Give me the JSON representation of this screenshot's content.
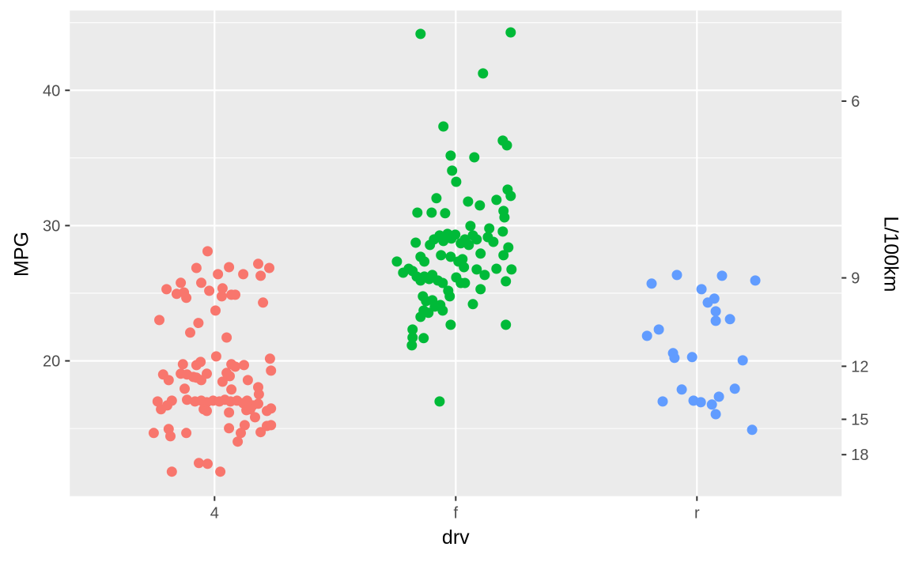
{
  "figure": {
    "background": "#ffffff",
    "panel_background": "#EBEBEB",
    "gridline_color": "#FFFFFF",
    "tick_mark_color": "#333333",
    "tick_label_color": "#4D4D4D",
    "axis_title_color": "#000000"
  },
  "chart_data": {
    "type": "scatter",
    "title": "",
    "xlabel": "drv",
    "ylabel": "MPG",
    "ylabel_right": "L/100km",
    "x_categories": [
      "4",
      "f",
      "r"
    ],
    "y_left_ticks": [
      20,
      30,
      40
    ],
    "y_left_minor": [
      15,
      25,
      35,
      45
    ],
    "y_right_ticks": [
      6,
      9,
      12,
      15,
      18
    ],
    "y_right_transform_constant": 235.215,
    "ylim": [
      10.0,
      45.9
    ],
    "grid": true,
    "legend": "none",
    "point_radius": 6.5,
    "series": [
      {
        "name": "4",
        "color": "#F8766D",
        "points": [
          {
            "x": -0.029,
            "y": 28.1
          },
          {
            "x": -0.075,
            "y": 26.87
          },
          {
            "x": 0.06,
            "y": 26.93
          },
          {
            "x": 0.181,
            "y": 27.17
          },
          {
            "x": 0.227,
            "y": 26.87
          },
          {
            "x": 0.014,
            "y": 26.41
          },
          {
            "x": 0.119,
            "y": 26.41
          },
          {
            "x": 0.191,
            "y": 26.29
          },
          {
            "x": -0.055,
            "y": 25.77
          },
          {
            "x": -0.14,
            "y": 25.77
          },
          {
            "x": -0.199,
            "y": 25.3
          },
          {
            "x": -0.157,
            "y": 24.95
          },
          {
            "x": -0.127,
            "y": 25.06
          },
          {
            "x": -0.117,
            "y": 24.66
          },
          {
            "x": -0.022,
            "y": 25.18
          },
          {
            "x": 0.033,
            "y": 25.36
          },
          {
            "x": 0.03,
            "y": 24.77
          },
          {
            "x": 0.07,
            "y": 24.89
          },
          {
            "x": 0.086,
            "y": 24.89
          },
          {
            "x": 0.201,
            "y": 24.31
          },
          {
            "x": 0.004,
            "y": 23.72
          },
          {
            "x": -0.229,
            "y": 23.02
          },
          {
            "x": -0.067,
            "y": 22.8
          },
          {
            "x": -0.101,
            "y": 22.09
          },
          {
            "x": 0.05,
            "y": 21.73
          },
          {
            "x": 0.007,
            "y": 20.33
          },
          {
            "x": -0.131,
            "y": 19.75
          },
          {
            "x": -0.075,
            "y": 19.69
          },
          {
            "x": -0.058,
            "y": 19.92
          },
          {
            "x": 0.07,
            "y": 19.75
          },
          {
            "x": 0.086,
            "y": 19.57
          },
          {
            "x": 0.122,
            "y": 19.69
          },
          {
            "x": 0.23,
            "y": 20.16
          },
          {
            "x": 0.234,
            "y": 19.28
          },
          {
            "x": -0.213,
            "y": 18.99
          },
          {
            "x": -0.19,
            "y": 18.58
          },
          {
            "x": -0.14,
            "y": 19.05
          },
          {
            "x": -0.114,
            "y": 18.99
          },
          {
            "x": -0.088,
            "y": 18.81
          },
          {
            "x": -0.075,
            "y": 18.76
          },
          {
            "x": -0.055,
            "y": 18.58
          },
          {
            "x": -0.032,
            "y": 19.05
          },
          {
            "x": 0.05,
            "y": 19.11
          },
          {
            "x": 0.063,
            "y": 18.87
          },
          {
            "x": 0.033,
            "y": 18.46
          },
          {
            "x": 0.138,
            "y": 18.58
          },
          {
            "x": 0.181,
            "y": 18.05
          },
          {
            "x": -0.124,
            "y": 17.94
          },
          {
            "x": 0.07,
            "y": 17.88
          },
          {
            "x": 0.184,
            "y": 17.53
          },
          {
            "x": -0.236,
            "y": 17.0
          },
          {
            "x": -0.196,
            "y": 16.71
          },
          {
            "x": -0.222,
            "y": 16.42
          },
          {
            "x": -0.177,
            "y": 17.06
          },
          {
            "x": -0.114,
            "y": 17.12
          },
          {
            "x": -0.081,
            "y": 17.0
          },
          {
            "x": -0.055,
            "y": 17.06
          },
          {
            "x": -0.032,
            "y": 16.94
          },
          {
            "x": -0.006,
            "y": 17.06
          },
          {
            "x": 0.02,
            "y": 17.0
          },
          {
            "x": 0.043,
            "y": 17.12
          },
          {
            "x": 0.066,
            "y": 17.0
          },
          {
            "x": 0.093,
            "y": 17.06
          },
          {
            "x": 0.119,
            "y": 16.88
          },
          {
            "x": 0.135,
            "y": 17.06
          },
          {
            "x": 0.158,
            "y": 16.71
          },
          {
            "x": 0.181,
            "y": 16.83
          },
          {
            "x": -0.045,
            "y": 16.42
          },
          {
            "x": -0.032,
            "y": 16.3
          },
          {
            "x": 0.06,
            "y": 16.18
          },
          {
            "x": 0.132,
            "y": 16.36
          },
          {
            "x": 0.148,
            "y": 16.42
          },
          {
            "x": 0.168,
            "y": 15.83
          },
          {
            "x": 0.217,
            "y": 16.3
          },
          {
            "x": 0.234,
            "y": 16.48
          },
          {
            "x": 0.125,
            "y": 15.25
          },
          {
            "x": 0.06,
            "y": 15.02
          },
          {
            "x": 0.109,
            "y": 14.67
          },
          {
            "x": 0.191,
            "y": 14.73
          },
          {
            "x": 0.217,
            "y": 15.19
          },
          {
            "x": 0.234,
            "y": 15.25
          },
          {
            "x": -0.252,
            "y": 14.67
          },
          {
            "x": -0.19,
            "y": 14.96
          },
          {
            "x": -0.183,
            "y": 14.43
          },
          {
            "x": -0.117,
            "y": 14.67
          },
          {
            "x": 0.096,
            "y": 14.03
          },
          {
            "x": -0.065,
            "y": 12.45
          },
          {
            "x": -0.029,
            "y": 12.39
          },
          {
            "x": 0.024,
            "y": 11.81
          },
          {
            "x": -0.177,
            "y": 11.81
          }
        ]
      },
      {
        "name": "f",
        "color": "#00BA38",
        "points": [
          {
            "x": -0.146,
            "y": 44.17
          },
          {
            "x": 0.228,
            "y": 44.28
          },
          {
            "x": 0.113,
            "y": 41.25
          },
          {
            "x": -0.051,
            "y": 37.33
          },
          {
            "x": 0.195,
            "y": 36.28
          },
          {
            "x": 0.212,
            "y": 35.93
          },
          {
            "x": -0.021,
            "y": 35.17
          },
          {
            "x": 0.077,
            "y": 35.05
          },
          {
            "x": -0.015,
            "y": 34.06
          },
          {
            "x": 0.002,
            "y": 33.24
          },
          {
            "x": -0.08,
            "y": 32.02
          },
          {
            "x": 0.215,
            "y": 32.66
          },
          {
            "x": 0.228,
            "y": 32.19
          },
          {
            "x": 0.051,
            "y": 31.78
          },
          {
            "x": 0.1,
            "y": 31.49
          },
          {
            "x": 0.169,
            "y": 31.9
          },
          {
            "x": -0.159,
            "y": 30.96
          },
          {
            "x": -0.1,
            "y": 30.96
          },
          {
            "x": -0.044,
            "y": 30.91
          },
          {
            "x": 0.198,
            "y": 31.08
          },
          {
            "x": 0.202,
            "y": 30.61
          },
          {
            "x": 0.061,
            "y": 29.97
          },
          {
            "x": 0.139,
            "y": 29.79
          },
          {
            "x": 0.195,
            "y": 29.56
          },
          {
            "x": -0.166,
            "y": 28.74
          },
          {
            "x": -0.107,
            "y": 28.57
          },
          {
            "x": -0.09,
            "y": 28.98
          },
          {
            "x": -0.067,
            "y": 29.27
          },
          {
            "x": -0.051,
            "y": 28.86
          },
          {
            "x": -0.034,
            "y": 29.39
          },
          {
            "x": -0.018,
            "y": 29.04
          },
          {
            "x": -0.002,
            "y": 29.33
          },
          {
            "x": 0.021,
            "y": 28.69
          },
          {
            "x": 0.038,
            "y": 28.98
          },
          {
            "x": 0.054,
            "y": 28.57
          },
          {
            "x": 0.071,
            "y": 29.27
          },
          {
            "x": 0.087,
            "y": 28.98
          },
          {
            "x": 0.133,
            "y": 29.15
          },
          {
            "x": 0.156,
            "y": 28.8
          },
          {
            "x": 0.218,
            "y": 28.39
          },
          {
            "x": -0.146,
            "y": 27.69
          },
          {
            "x": -0.13,
            "y": 27.34
          },
          {
            "x": -0.061,
            "y": 27.81
          },
          {
            "x": -0.021,
            "y": 27.69
          },
          {
            "x": 0.011,
            "y": 27.34
          },
          {
            "x": 0.028,
            "y": 27.52
          },
          {
            "x": 0.103,
            "y": 27.93
          },
          {
            "x": 0.198,
            "y": 27.81
          },
          {
            "x": -0.244,
            "y": 27.34
          },
          {
            "x": -0.218,
            "y": 26.52
          },
          {
            "x": -0.195,
            "y": 26.81
          },
          {
            "x": -0.179,
            "y": 26.64
          },
          {
            "x": -0.162,
            "y": 26.23
          },
          {
            "x": -0.146,
            "y": 25.94
          },
          {
            "x": -0.13,
            "y": 26.23
          },
          {
            "x": -0.11,
            "y": 26.05
          },
          {
            "x": -0.097,
            "y": 26.35
          },
          {
            "x": -0.074,
            "y": 25.94
          },
          {
            "x": -0.054,
            "y": 25.76
          },
          {
            "x": 0.034,
            "y": 26.93
          },
          {
            "x": 0.087,
            "y": 26.76
          },
          {
            "x": 0.12,
            "y": 26.35
          },
          {
            "x": 0.169,
            "y": 26.81
          },
          {
            "x": 0.231,
            "y": 26.76
          },
          {
            "x": 0.002,
            "y": 26.17
          },
          {
            "x": 0.021,
            "y": 25.76
          },
          {
            "x": 0.038,
            "y": 25.76
          },
          {
            "x": 0.103,
            "y": 25.3
          },
          {
            "x": 0.208,
            "y": 25.88
          },
          {
            "x": -0.031,
            "y": 25.18
          },
          {
            "x": -0.025,
            "y": 24.77
          },
          {
            "x": -0.136,
            "y": 24.77
          },
          {
            "x": -0.123,
            "y": 24.42
          },
          {
            "x": -0.097,
            "y": 24.48
          },
          {
            "x": -0.087,
            "y": 24.01
          },
          {
            "x": -0.064,
            "y": 24.13
          },
          {
            "x": -0.054,
            "y": 23.72
          },
          {
            "x": 0.071,
            "y": 24.19
          },
          {
            "x": -0.133,
            "y": 23.72
          },
          {
            "x": -0.113,
            "y": 23.55
          },
          {
            "x": -0.146,
            "y": 23.25
          },
          {
            "x": -0.021,
            "y": 22.67
          },
          {
            "x": 0.208,
            "y": 22.67
          },
          {
            "x": -0.179,
            "y": 22.32
          },
          {
            "x": -0.179,
            "y": 21.73
          },
          {
            "x": -0.133,
            "y": 21.68
          },
          {
            "x": -0.182,
            "y": 21.15
          },
          {
            "x": -0.067,
            "y": 17.0
          }
        ]
      },
      {
        "name": "r",
        "color": "#619CFF",
        "points": [
          {
            "x": -0.083,
            "y": 26.35
          },
          {
            "x": 0.104,
            "y": 26.29
          },
          {
            "x": -0.188,
            "y": 25.71
          },
          {
            "x": 0.242,
            "y": 25.94
          },
          {
            "x": 0.019,
            "y": 25.3
          },
          {
            "x": 0.072,
            "y": 24.6
          },
          {
            "x": 0.045,
            "y": 24.31
          },
          {
            "x": 0.078,
            "y": 23.66
          },
          {
            "x": 0.078,
            "y": 22.96
          },
          {
            "x": 0.137,
            "y": 23.08
          },
          {
            "x": -0.158,
            "y": 22.32
          },
          {
            "x": -0.207,
            "y": 21.85
          },
          {
            "x": -0.099,
            "y": 20.57
          },
          {
            "x": -0.093,
            "y": 20.22
          },
          {
            "x": -0.02,
            "y": 20.28
          },
          {
            "x": 0.19,
            "y": 20.04
          },
          {
            "x": -0.063,
            "y": 17.88
          },
          {
            "x": 0.157,
            "y": 17.94
          },
          {
            "x": -0.142,
            "y": 17.0
          },
          {
            "x": -0.014,
            "y": 17.06
          },
          {
            "x": 0.016,
            "y": 16.94
          },
          {
            "x": 0.062,
            "y": 16.77
          },
          {
            "x": 0.091,
            "y": 17.35
          },
          {
            "x": 0.078,
            "y": 16.06
          },
          {
            "x": 0.229,
            "y": 14.9
          }
        ]
      }
    ]
  }
}
